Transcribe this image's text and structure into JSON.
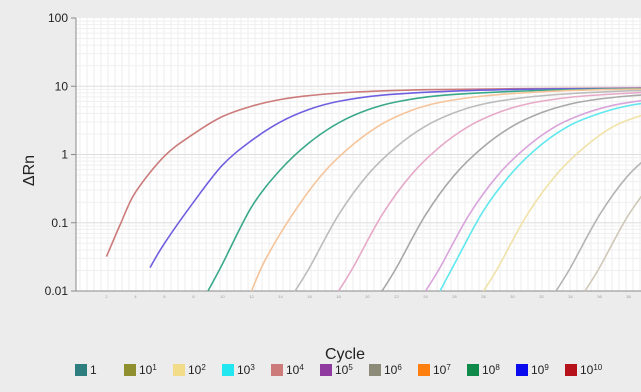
{
  "chart_data": {
    "type": "line",
    "xlabel": "Cycle",
    "ylabel": "ΔRn",
    "yscale": "log",
    "ylim": [
      0.01,
      100
    ],
    "xlim": [
      1,
      40
    ],
    "yticks": [
      {
        "value": 100,
        "label": "100"
      },
      {
        "value": 10,
        "label": "10"
      },
      {
        "value": 1,
        "label": "1"
      },
      {
        "value": 0.1,
        "label": "0.1"
      },
      {
        "value": 0.01,
        "label": "0.01"
      }
    ],
    "xticks": [
      2,
      4,
      6,
      8,
      10,
      12,
      14,
      16,
      18,
      20,
      22,
      24,
      26,
      28,
      30,
      32,
      34,
      36,
      38
    ],
    "grid": true,
    "legend_position": "bottom",
    "legend": [
      {
        "base": "1",
        "exp": "",
        "color": "#2e7d7f"
      },
      {
        "base": "10",
        "exp": "1",
        "color": "#8f8f2f"
      },
      {
        "base": "10",
        "exp": "2",
        "color": "#f2dc8a"
      },
      {
        "base": "10",
        "exp": "3",
        "color": "#22e6f0"
      },
      {
        "base": "10",
        "exp": "4",
        "color": "#cc7a7a"
      },
      {
        "base": "10",
        "exp": "5",
        "color": "#8e3a9e"
      },
      {
        "base": "10",
        "exp": "6",
        "color": "#8c8a78"
      },
      {
        "base": "10",
        "exp": "7",
        "color": "#ff7f0e"
      },
      {
        "base": "10",
        "exp": "8",
        "color": "#0f8a4a"
      },
      {
        "base": "10",
        "exp": "9",
        "color": "#0a0aee"
      },
      {
        "base": "10",
        "exp": "10",
        "color": "#b5121b"
      }
    ],
    "series": [
      {
        "color": "#cc7a7a",
        "x": [
          2,
          3,
          4,
          6,
          8,
          10,
          12,
          14,
          16,
          19,
          24,
          30,
          38,
          40
        ],
        "y": [
          0.032,
          0.1,
          0.28,
          0.95,
          2.0,
          3.6,
          5.1,
          6.4,
          7.3,
          8.2,
          8.9,
          9.2,
          9.4,
          9.5
        ]
      },
      {
        "color": "#6f5fe0",
        "x": [
          5,
          6,
          8,
          10,
          12,
          14,
          16,
          18,
          21,
          26,
          32,
          40
        ],
        "y": [
          0.022,
          0.05,
          0.2,
          0.7,
          1.6,
          3.0,
          4.6,
          6.0,
          7.4,
          8.5,
          9.1,
          9.3
        ]
      },
      {
        "color": "#3aa88a",
        "x": [
          9,
          10,
          12,
          14,
          16,
          18,
          20,
          22,
          25,
          30,
          35,
          40
        ],
        "y": [
          0.01,
          0.025,
          0.17,
          0.6,
          1.5,
          2.9,
          4.5,
          5.9,
          7.3,
          8.4,
          9.0,
          9.2
        ]
      },
      {
        "color": "#f5c49a",
        "x": [
          12,
          13,
          15,
          17,
          19,
          21,
          23,
          25,
          28,
          32,
          36,
          40
        ],
        "y": [
          0.01,
          0.03,
          0.15,
          0.55,
          1.4,
          2.8,
          4.4,
          5.8,
          7.2,
          8.3,
          8.9,
          9.1
        ]
      },
      {
        "color": "#bcbcbc",
        "x": [
          15,
          16,
          18,
          20,
          22,
          24,
          26,
          28,
          31,
          34,
          37,
          40
        ],
        "y": [
          0.01,
          0.022,
          0.13,
          0.5,
          1.3,
          2.6,
          4.1,
          5.5,
          6.9,
          7.8,
          8.4,
          8.8
        ]
      },
      {
        "color": "#e6aac8",
        "x": [
          18,
          19,
          21,
          23,
          25,
          27,
          29,
          31,
          34,
          37,
          40
        ],
        "y": [
          0.01,
          0.022,
          0.13,
          0.5,
          1.3,
          2.6,
          4.1,
          5.5,
          6.9,
          7.7,
          8.3
        ]
      },
      {
        "color": "#a8a8a8",
        "x": [
          21,
          22,
          24,
          26,
          28,
          30,
          32,
          34,
          36,
          38,
          40
        ],
        "y": [
          0.01,
          0.022,
          0.13,
          0.5,
          1.3,
          2.6,
          4.1,
          5.5,
          6.5,
          7.2,
          7.7
        ]
      },
      {
        "color": "#d9a4dc",
        "x": [
          24,
          25,
          27,
          29,
          31,
          33,
          35,
          37,
          39,
          40
        ],
        "y": [
          0.01,
          0.022,
          0.13,
          0.5,
          1.3,
          2.6,
          4.0,
          5.3,
          6.2,
          6.6
        ]
      },
      {
        "color": "#5fe8ee",
        "x": [
          25,
          26,
          28,
          30,
          32,
          34,
          36,
          38,
          40
        ],
        "y": [
          0.01,
          0.025,
          0.15,
          0.55,
          1.4,
          2.7,
          4.0,
          5.2,
          6.0
        ]
      },
      {
        "color": "#f0e2a8",
        "x": [
          28,
          29,
          31,
          33,
          35,
          37,
          39,
          40
        ],
        "y": [
          0.01,
          0.022,
          0.13,
          0.5,
          1.3,
          2.6,
          3.8,
          4.3
        ]
      },
      {
        "color": "#b4b4b4",
        "x": [
          33,
          34,
          36,
          38,
          40
        ],
        "y": [
          0.01,
          0.022,
          0.13,
          0.5,
          1.2
        ]
      },
      {
        "color": "#cfc8b8",
        "x": [
          35,
          36,
          38,
          40
        ],
        "y": [
          0.01,
          0.022,
          0.13,
          0.5
        ]
      }
    ]
  }
}
